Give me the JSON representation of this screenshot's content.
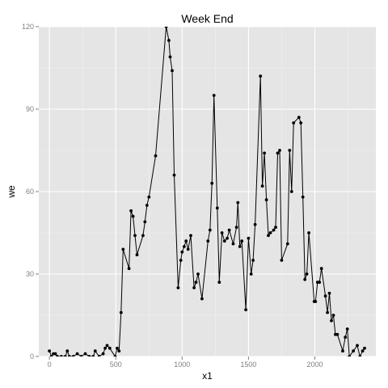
{
  "chart_data": {
    "type": "line",
    "title": "Week End",
    "xlabel": "x1",
    "ylabel": "we",
    "xlim": [
      -80,
      2460
    ],
    "ylim": [
      0,
      120
    ],
    "x_ticks": [
      0,
      500,
      1000,
      1500,
      2000
    ],
    "y_ticks": [
      0,
      30,
      60,
      90,
      120
    ],
    "grid": true,
    "legend": "none",
    "colors": {
      "panel_background": "#e5e5e5",
      "grid_major": "#ffffff",
      "grid_minor": "#f2f2f2",
      "line": "#000000",
      "point": "#000000",
      "tick_label": "#7f7f7f"
    },
    "series": [
      {
        "x": [
          0,
          15,
          30,
          45,
          60,
          90,
          120,
          135,
          150,
          180,
          210,
          240,
          270,
          300,
          330,
          345,
          375,
          405,
          420,
          435,
          455,
          495,
          510,
          525,
          540,
          555,
          600,
          615,
          630,
          645,
          660,
          705,
          720,
          735,
          750,
          800,
          880,
          900,
          910,
          925,
          940,
          970,
          990,
          1000,
          1015,
          1030,
          1045,
          1065,
          1090,
          1105,
          1120,
          1150,
          1195,
          1210,
          1225,
          1240,
          1265,
          1280,
          1300,
          1320,
          1340,
          1355,
          1385,
          1410,
          1420,
          1435,
          1450,
          1480,
          1500,
          1520,
          1535,
          1550,
          1590,
          1605,
          1620,
          1635,
          1650,
          1665,
          1690,
          1705,
          1720,
          1735,
          1750,
          1795,
          1810,
          1825,
          1840,
          1880,
          1895,
          1910,
          1925,
          1940,
          1955,
          1995,
          2005,
          2020,
          2035,
          2050,
          2080,
          2095,
          2110,
          2125,
          2140,
          2155,
          2170,
          2210,
          2230,
          2245,
          2260,
          2290,
          2320,
          2340,
          2360,
          2375
        ],
        "y": [
          2,
          0,
          1,
          1,
          0,
          0,
          0,
          2,
          0,
          0,
          1,
          0,
          1,
          0,
          0,
          2,
          0,
          1,
          3,
          4,
          3,
          0,
          3,
          2,
          16,
          39,
          32,
          53,
          51,
          44,
          37,
          44,
          49,
          55,
          58,
          73,
          120,
          115,
          109,
          104,
          66,
          25,
          35,
          38,
          40,
          42,
          39,
          44,
          25,
          27,
          30,
          21,
          42,
          46,
          63,
          95,
          54,
          27,
          45,
          42,
          43,
          46,
          41,
          47,
          56,
          40,
          42,
          17,
          43,
          30,
          35,
          48,
          102,
          62,
          74,
          57,
          44,
          45,
          46,
          47,
          74,
          75,
          35,
          41,
          75,
          60,
          85,
          87,
          85,
          58,
          28,
          30,
          45,
          20,
          20,
          27,
          27,
          32,
          22,
          16,
          23,
          13,
          15,
          8,
          8,
          2,
          7,
          10,
          0,
          2,
          4,
          0,
          2,
          3
        ]
      }
    ]
  }
}
